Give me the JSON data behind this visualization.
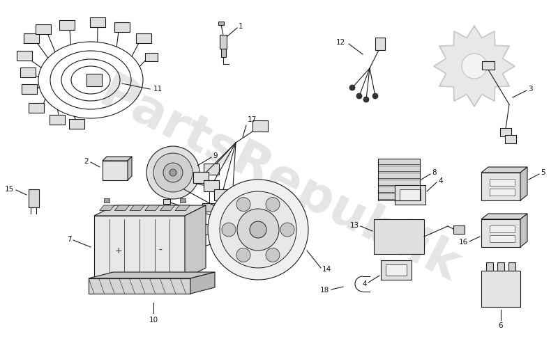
{
  "background_color": "#ffffff",
  "watermark_text": "PartsRepublik",
  "watermark_color": "#bbbbbb",
  "watermark_alpha": 0.38,
  "fig_width": 8.0,
  "fig_height": 4.9,
  "lc": "#1a1a1a",
  "lw": 0.8
}
